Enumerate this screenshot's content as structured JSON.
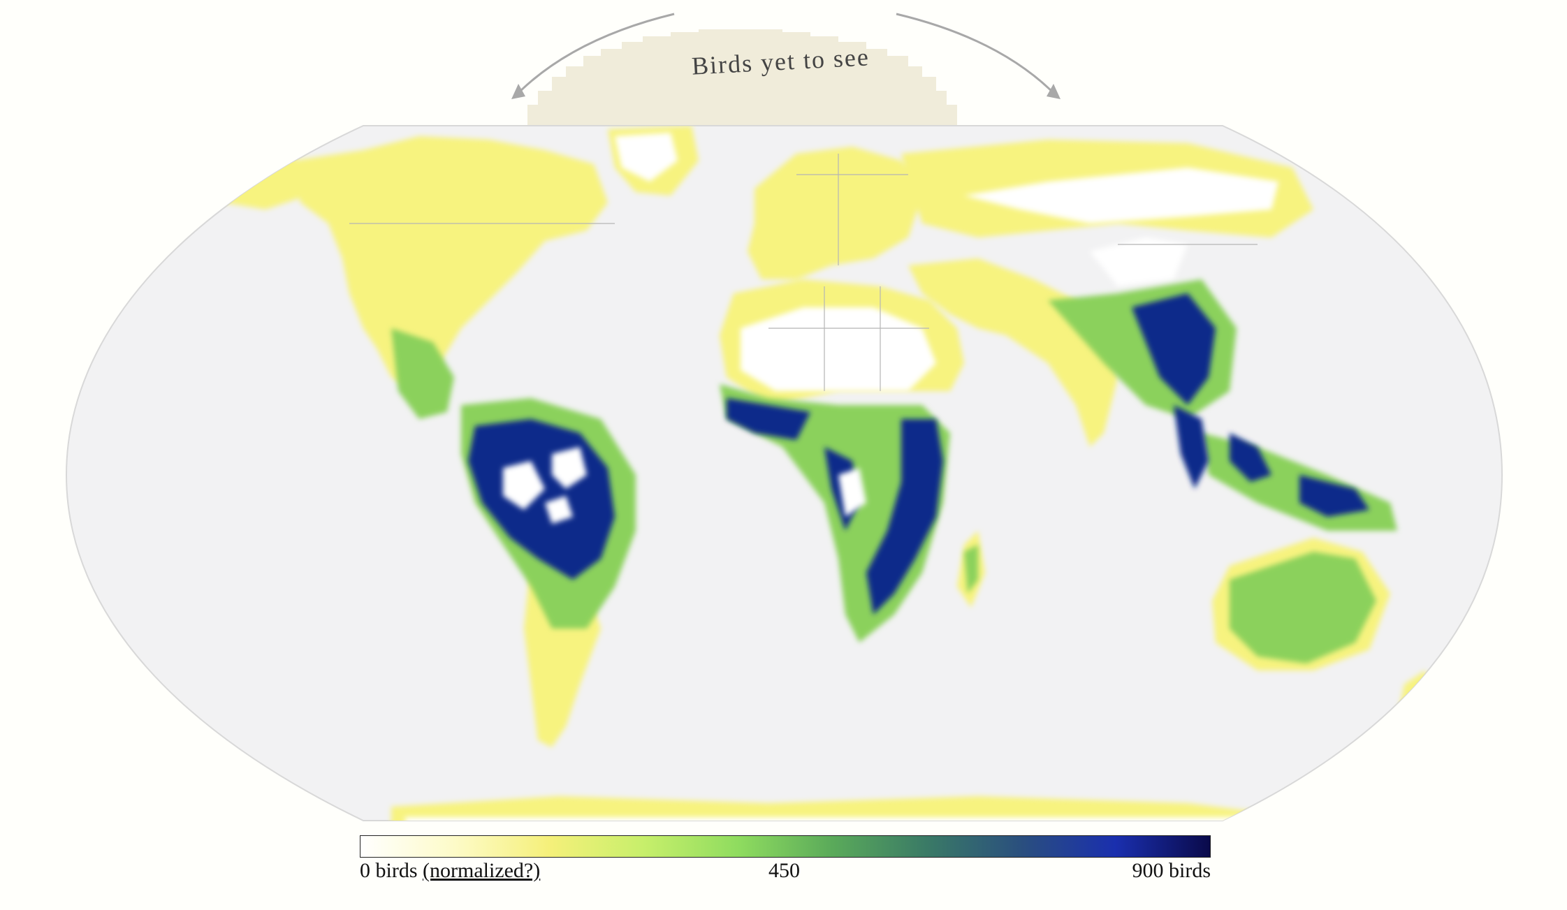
{
  "title": "Birds yet to see",
  "legend": {
    "min_label": "0 birds",
    "link_label": "(normalized?)",
    "mid_label": "450",
    "max_label": "900 birds",
    "min_value": 0,
    "mid_value": 450,
    "max_value": 900,
    "color_stops": [
      "#ffffff",
      "#fdfbc8",
      "#f5f07a",
      "#c7ef6b",
      "#8fdc5f",
      "#5aaa5a",
      "#3a7a66",
      "#2a4f7e",
      "#1a2fae",
      "#0a0a4a"
    ]
  },
  "colors": {
    "ocean": "#f2f2f3",
    "land_zero": "#ffffff",
    "low": "#f7f37f",
    "mid": "#8bd15b",
    "high": "#0d2a8a",
    "max": "#071a5a",
    "banner": "#f0ecda",
    "arrow": "#a8a8a8",
    "border": "#b5b5b5"
  },
  "icons": {
    "arrow_left": "curved-arrow-left-icon",
    "arrow_right": "curved-arrow-right-icon"
  }
}
